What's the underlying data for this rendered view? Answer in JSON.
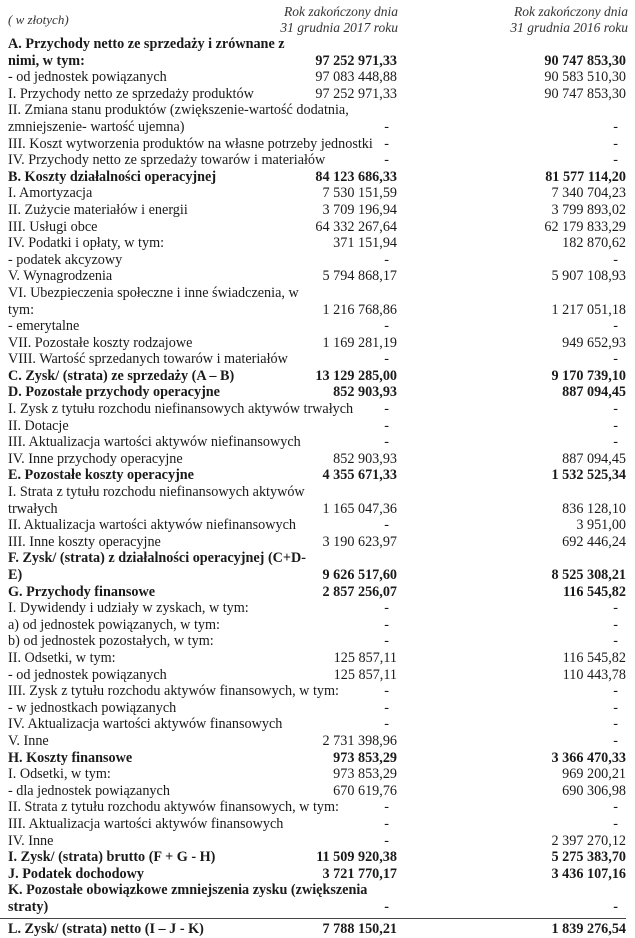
{
  "header": {
    "unit": "( w złotych)",
    "col_2017": "Rok zakończony dnia\n31 grudnia 2017 roku",
    "col_2016": "Rok zakończony dnia\n31 grudnia 2016 roku"
  },
  "rows": [
    {
      "label": "A. Przychody netto ze sprzedaży i zrównane z nimi, w tym:",
      "v2017": "97 252 971,33",
      "v2016": "90 747 853,30",
      "bold": true
    },
    {
      "label": "- od jednostek powiązanych",
      "v2017": "97 083 448,88",
      "v2016": "90 583 510,30"
    },
    {
      "label": "I. Przychody netto ze sprzedaży produktów",
      "v2017": "97 252 971,33",
      "v2016": "90 747 853,30"
    },
    {
      "label": "II. Zmiana stanu produktów (zwiększenie-wartość dodatnia,\nzmniejszenie- wartość ujemna)",
      "v2017": "-",
      "v2016": "-"
    },
    {
      "label": "III. Koszt wytworzenia produktów na własne potrzeby jednostki",
      "v2017": "-",
      "v2016": "-"
    },
    {
      "label": "IV. Przychody netto ze sprzedaży towarów i materiałów",
      "v2017": "-",
      "v2016": "-"
    },
    {
      "label": "B. Koszty działalności operacyjnej",
      "v2017": "84 123 686,33",
      "v2016": "81 577 114,20",
      "bold": true
    },
    {
      "label": "I. Amortyzacja",
      "v2017": "7 530 151,59",
      "v2016": "7 340 704,23"
    },
    {
      "label": "II. Zużycie materiałów i energii",
      "v2017": "3 709 196,94",
      "v2016": "3 799 893,02"
    },
    {
      "label": "III. Usługi obce",
      "v2017": "64 332 267,64",
      "v2016": "62 179 833,29"
    },
    {
      "label": "IV. Podatki i opłaty, w tym:",
      "v2017": "371 151,94",
      "v2016": "182 870,62"
    },
    {
      "label": "- podatek akcyzowy",
      "v2017": "-",
      "v2016": "-"
    },
    {
      "label": "V. Wynagrodzenia",
      "v2017": "5 794 868,17",
      "v2016": "5 907 108,93"
    },
    {
      "label": "VI. Ubezpieczenia społeczne i inne świadczenia, w tym:",
      "v2017": "1 216 768,86",
      "v2016": "1 217 051,18"
    },
    {
      "label": "- emerytalne",
      "v2017": "-",
      "v2016": "-"
    },
    {
      "label": "VII. Pozostałe koszty rodzajowe",
      "v2017": "1 169 281,19",
      "v2016": "949 652,93"
    },
    {
      "label": "VIII. Wartość sprzedanych towarów i materiałów",
      "v2017": "-",
      "v2016": "-"
    },
    {
      "label": "C. Zysk/ (strata) ze sprzedaży (A – B)",
      "v2017": "13 129 285,00",
      "v2016": "9 170 739,10",
      "bold": true
    },
    {
      "label": "D. Pozostałe przychody operacyjne",
      "v2017": "852 903,93",
      "v2016": "887 094,45",
      "bold": true
    },
    {
      "label": "I. Zysk z tytułu rozchodu niefinansowych aktywów trwałych",
      "v2017": "-",
      "v2016": "-"
    },
    {
      "label": "II. Dotacje",
      "v2017": "-",
      "v2016": "-"
    },
    {
      "label": "III. Aktualizacja wartości aktywów niefinansowych",
      "v2017": "-",
      "v2016": "-"
    },
    {
      "label": "IV. Inne przychody operacyjne",
      "v2017": "852 903,93",
      "v2016": "887 094,45"
    },
    {
      "label": "E. Pozostałe koszty operacyjne",
      "v2017": "4 355 671,33",
      "v2016": "1 532 525,34",
      "bold": true
    },
    {
      "label": "I. Strata z tytułu rozchodu niefinansowych aktywów trwałych",
      "v2017": "1 165 047,36",
      "v2016": "836 128,10"
    },
    {
      "label": "II. Aktualizacja wartości aktywów niefinansowych",
      "v2017": "-",
      "v2016": "3 951,00"
    },
    {
      "label": "III. Inne koszty operacyjne",
      "v2017": "3 190 623,97",
      "v2016": "692 446,24"
    },
    {
      "label": "F. Zysk/ (strata) z działalności operacyjnej (C+D-E)",
      "v2017": "9 626 517,60",
      "v2016": "8 525 308,21",
      "bold": true
    },
    {
      "label": "G. Przychody finansowe",
      "v2017": "2 857 256,07",
      "v2016": "116 545,82",
      "bold": true
    },
    {
      "label": "I. Dywidendy i udziały w zyskach, w tym:",
      "v2017": "-",
      "v2016": "-"
    },
    {
      "label": "a) od jednostek powiązanych, w tym:",
      "v2017": "-",
      "v2016": "-"
    },
    {
      "label": "b) od jednostek pozostałych, w tym:",
      "v2017": "-",
      "v2016": "-"
    },
    {
      "label": "II. Odsetki, w tym:",
      "v2017": "125 857,11",
      "v2016": "116 545,82"
    },
    {
      "label": "- od jednostek powiązanych",
      "v2017": "125 857,11",
      "v2016": "110 443,78"
    },
    {
      "label": "III. Zysk z tytułu rozchodu aktywów finansowych, w tym:",
      "v2017": "-",
      "v2016": "-"
    },
    {
      "label": "- w jednostkach powiązanych",
      "v2017": "-",
      "v2016": "-"
    },
    {
      "label": "IV. Aktualizacja wartości aktywów finansowych",
      "v2017": "-",
      "v2016": "-"
    },
    {
      "label": "V. Inne",
      "v2017": "2 731 398,96",
      "v2016": "-"
    },
    {
      "label": "H. Koszty finansowe",
      "v2017": "973 853,29",
      "v2016": "3 366 470,33",
      "bold": true
    },
    {
      "label": "I. Odsetki, w tym:",
      "v2017": "973 853,29",
      "v2016": "969 200,21"
    },
    {
      "label": "- dla jednostek powiązanych",
      "v2017": "670 619,76",
      "v2016": "690 306,98"
    },
    {
      "label": "II. Strata z tytułu rozchodu aktywów finansowych, w tym:",
      "v2017": "-",
      "v2016": "-"
    },
    {
      "label": "III. Aktualizacja wartości aktywów finansowych",
      "v2017": "-",
      "v2016": "-"
    },
    {
      "label": "IV. Inne",
      "v2017": "-",
      "v2016": "2 397 270,12"
    },
    {
      "label": "I. Zysk/ (strata) brutto (F + G - H)",
      "v2017": "11 509 920,38",
      "v2016": "5 275 383,70",
      "bold": true
    },
    {
      "label": "J. Podatek dochodowy",
      "v2017": "3 721 770,17",
      "v2016": "3 436 107,16",
      "bold": true
    },
    {
      "label": "K. Pozostałe obowiązkowe zmniejszenia zysku (zwiększenia\nstraty)",
      "v2017": "-",
      "v2016": "-",
      "bold": true
    },
    {
      "label": "L. Zysk/ (strata) netto (I – J - K)",
      "v2017": "7 788 150,21",
      "v2016": "1 839 276,54",
      "bold": true,
      "rule": true
    }
  ]
}
